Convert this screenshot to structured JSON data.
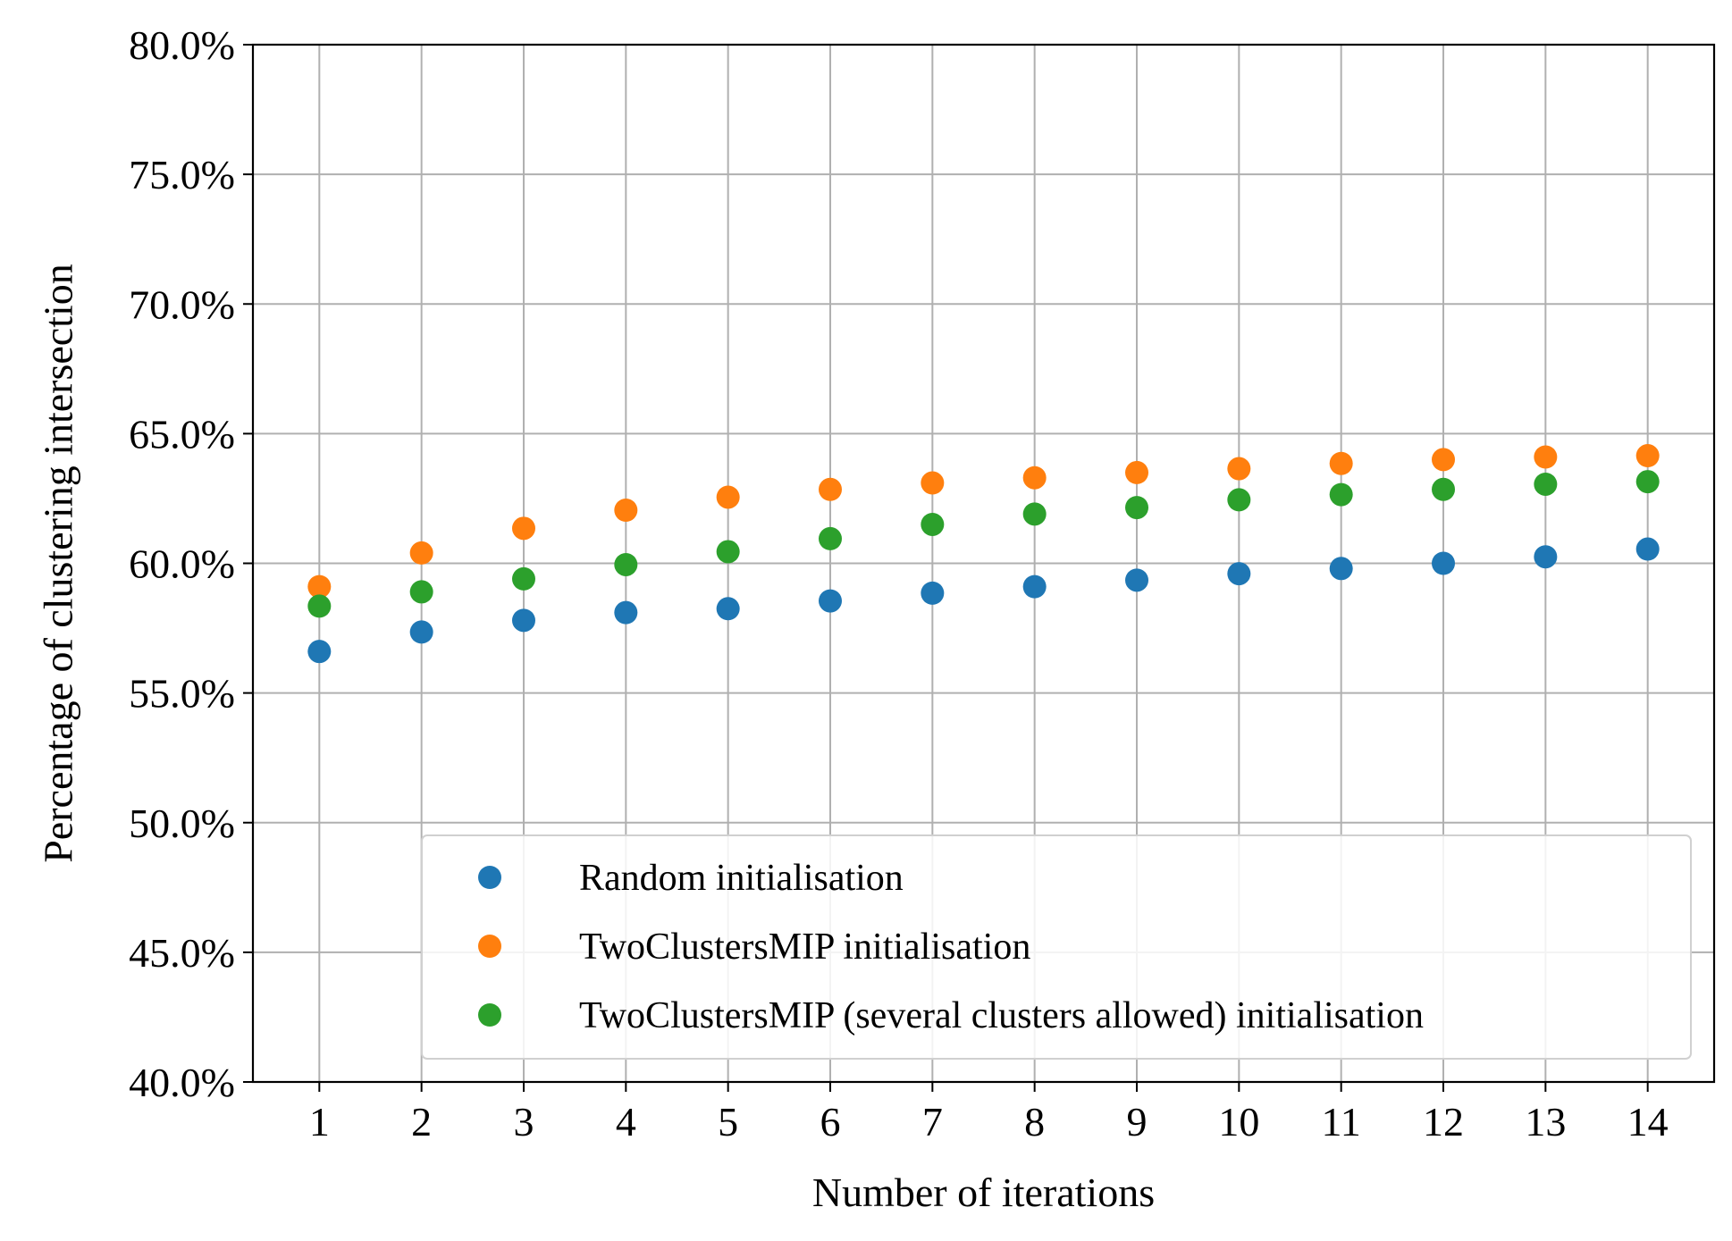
{
  "chart_data": {
    "type": "scatter",
    "xlabel": "Number of iterations",
    "ylabel": "Percentage of clustering intersection",
    "x": [
      1,
      2,
      3,
      4,
      5,
      6,
      7,
      8,
      9,
      10,
      11,
      12,
      13,
      14
    ],
    "xticks": [
      "1",
      "2",
      "3",
      "4",
      "5",
      "6",
      "7",
      "8",
      "9",
      "10",
      "11",
      "12",
      "13",
      "14"
    ],
    "xlim": [
      0.35,
      14.65
    ],
    "ylim": [
      40.0,
      80.0
    ],
    "yticks": [
      40,
      45,
      50,
      55,
      60,
      65,
      70,
      75,
      80
    ],
    "ytick_labels": [
      "40.0%",
      "45.0%",
      "50.0%",
      "55.0%",
      "60.0%",
      "65.0%",
      "70.0%",
      "75.0%",
      "80.0%"
    ],
    "grid": true,
    "legend_position": "lower-right",
    "series": [
      {
        "name": "Random initialisation",
        "color": "#1f77b4",
        "values": [
          56.6,
          57.35,
          57.8,
          58.1,
          58.25,
          58.55,
          58.85,
          59.1,
          59.35,
          59.6,
          59.8,
          60.0,
          60.25,
          60.55
        ]
      },
      {
        "name": "TwoClustersMIP initialisation",
        "color": "#ff7f0e",
        "values": [
          59.1,
          60.4,
          61.35,
          62.05,
          62.55,
          62.85,
          63.1,
          63.3,
          63.5,
          63.65,
          63.85,
          64.0,
          64.1,
          64.15
        ]
      },
      {
        "name": "TwoClustersMIP (several clusters allowed) initialisation",
        "color": "#2ca02c",
        "values": [
          58.35,
          58.9,
          59.4,
          59.95,
          60.45,
          60.95,
          61.5,
          61.9,
          62.15,
          62.45,
          62.65,
          62.85,
          63.05,
          63.15
        ]
      }
    ]
  }
}
